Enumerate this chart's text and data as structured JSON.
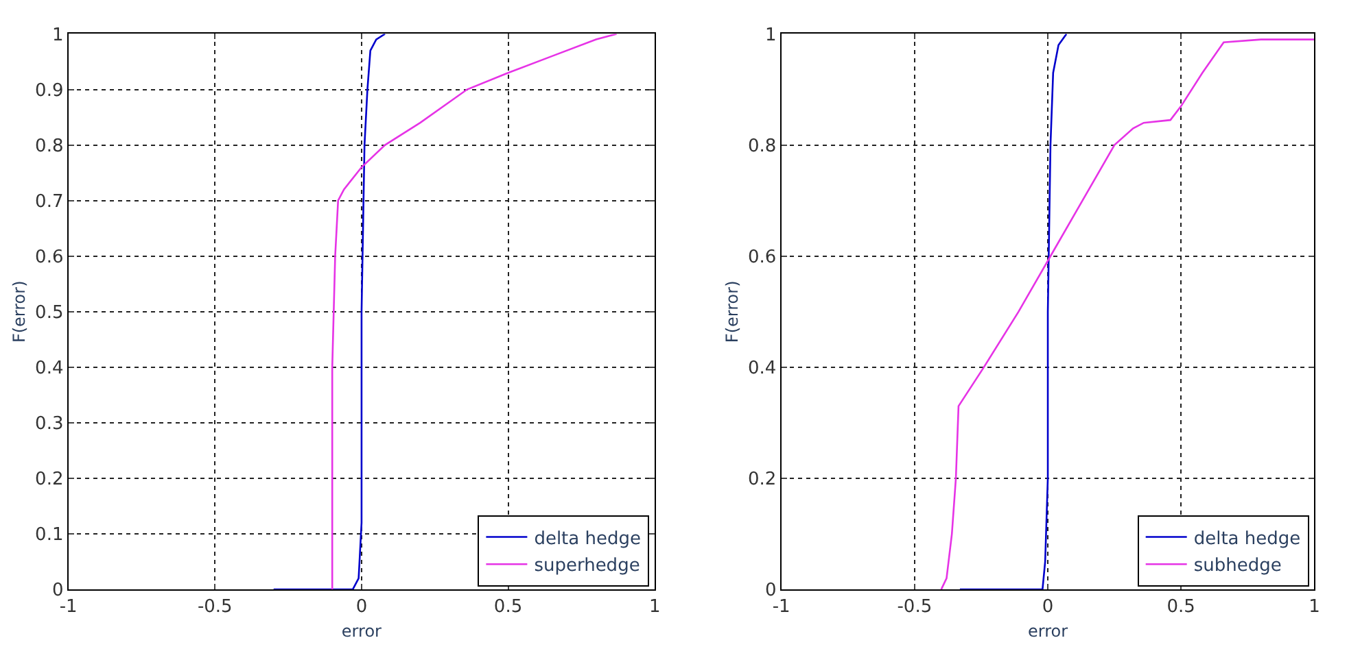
{
  "chart_data": [
    {
      "type": "line",
      "xlabel": "error",
      "ylabel": "F(error)",
      "xlim": [
        -1,
        1
      ],
      "xticks": [
        -1,
        -0.5,
        0,
        0.5,
        1
      ],
      "ylim": [
        0,
        1
      ],
      "yticks": [
        0,
        0.1,
        0.2,
        0.3,
        0.4,
        0.5,
        0.6,
        0.7,
        0.8,
        0.9,
        1
      ],
      "grid": true,
      "legend": "bottom right",
      "line_style": "solid",
      "marker": "none",
      "series": [
        {
          "name": "delta hedge",
          "color": "#0000cc",
          "x": [
            -0.3,
            -0.03,
            -0.01,
            0.0,
            0.0,
            0.01,
            0.02,
            0.03,
            0.05,
            0.08
          ],
          "values": [
            0,
            0,
            0.02,
            0.12,
            0.5,
            0.8,
            0.9,
            0.97,
            0.99,
            1
          ]
        },
        {
          "name": "superhedge",
          "color": "#e633e6",
          "x": [
            -0.1,
            -0.1,
            -0.09,
            -0.08,
            -0.06,
            0.0,
            0.08,
            0.2,
            0.36,
            0.5,
            0.65,
            0.8,
            0.87
          ],
          "values": [
            0,
            0.4,
            0.6,
            0.7,
            0.72,
            0.76,
            0.8,
            0.84,
            0.9,
            0.93,
            0.96,
            0.99,
            1
          ]
        }
      ]
    },
    {
      "type": "line",
      "xlabel": "error",
      "ylabel": "F(error)",
      "xlim": [
        -1,
        1
      ],
      "xticks": [
        -1,
        -0.5,
        0,
        0.5,
        1
      ],
      "ylim": [
        0,
        1
      ],
      "yticks": [
        0,
        0.2,
        0.4,
        0.6,
        0.8,
        1
      ],
      "grid": true,
      "legend": "bottom right",
      "line_style": "solid",
      "marker": "none",
      "series": [
        {
          "name": "delta hedge",
          "color": "#0000cc",
          "x": [
            -0.33,
            -0.02,
            -0.01,
            0.0,
            0.0,
            0.01,
            0.02,
            0.04,
            0.07
          ],
          "values": [
            0,
            0,
            0.05,
            0.2,
            0.5,
            0.8,
            0.93,
            0.98,
            1
          ]
        },
        {
          "name": "subhedge",
          "color": "#e633e6",
          "x": [
            -0.4,
            -0.38,
            -0.36,
            -0.345,
            -0.335,
            -0.24,
            -0.11,
            0.01,
            0.13,
            0.25,
            0.32,
            0.36,
            0.46,
            0.5,
            0.58,
            0.66,
            0.8,
            1
          ],
          "values": [
            0,
            0.02,
            0.1,
            0.2,
            0.33,
            0.4,
            0.5,
            0.6,
            0.7,
            0.8,
            0.83,
            0.84,
            0.845,
            0.87,
            0.93,
            0.985,
            0.99,
            0.99
          ]
        }
      ]
    }
  ]
}
